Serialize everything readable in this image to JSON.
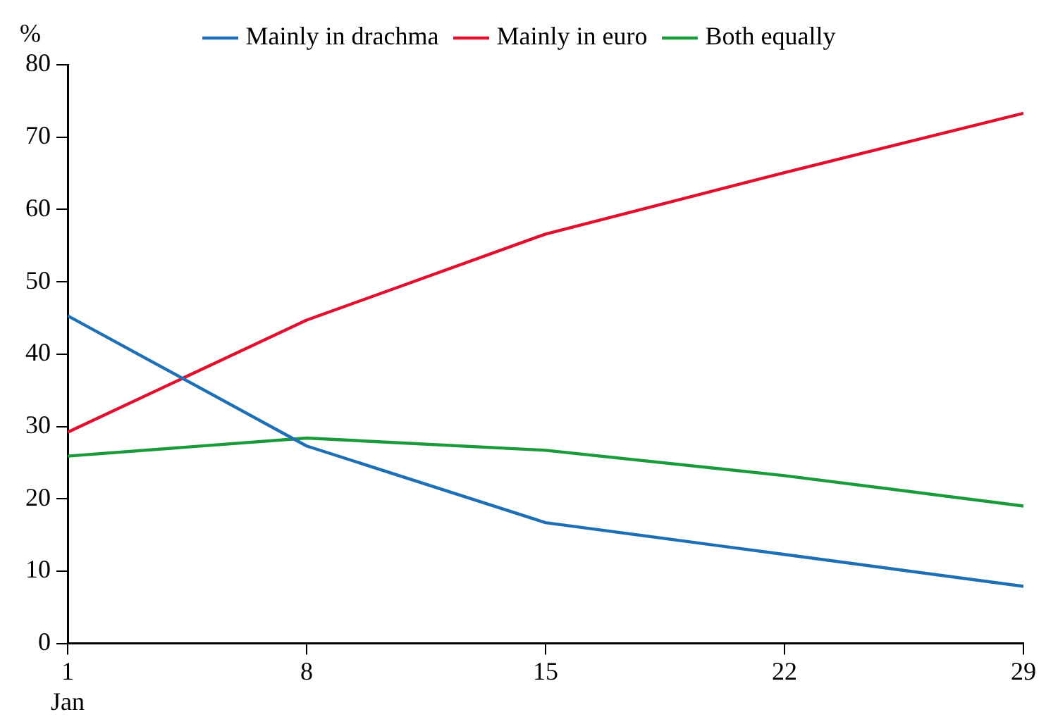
{
  "chart_data": {
    "type": "line",
    "ylabel": "%",
    "x": [
      1,
      8,
      15,
      22,
      29
    ],
    "series": [
      {
        "name": "Mainly in drachma",
        "color": "#1f6fb4",
        "values": [
          45.3,
          27.3,
          16.7,
          12.3,
          7.9
        ]
      },
      {
        "name": "Mainly in euro",
        "color": "#e0102f",
        "values": [
          29.2,
          44.7,
          56.6,
          65.1,
          73.3
        ]
      },
      {
        "name": "Both equally",
        "color": "#1a9a3a",
        "values": [
          25.9,
          28.4,
          26.7,
          23.2,
          19.0
        ]
      }
    ],
    "xlim": [
      1,
      29
    ],
    "xticks": [
      {
        "value": 1,
        "label": "1\nJan"
      },
      8,
      15,
      22,
      29
    ],
    "ylim": [
      0,
      80
    ],
    "yticks": [
      0,
      10,
      20,
      30,
      40,
      50,
      60,
      70,
      80
    ],
    "grid": false,
    "legend": "top",
    "marker": "none",
    "line_style": "solid"
  }
}
